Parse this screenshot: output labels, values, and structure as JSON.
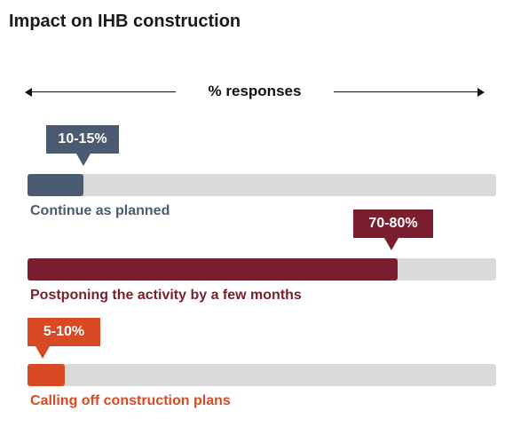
{
  "title": "Impact on IHB construction",
  "axis_label": "% responses",
  "colors": {
    "track": "#d9d9d9",
    "continue": "#4a5a70",
    "postpone": "#7b1f2e",
    "calloff": "#d84a23"
  },
  "chart_data": {
    "type": "bar",
    "orientation": "horizontal",
    "title": "Impact on IHB construction",
    "xlabel": "% responses",
    "xlim": [
      0,
      100
    ],
    "categories": [
      "Continue as planned",
      "Postponing the activity by a few months",
      "Calling off construction plans"
    ],
    "ranges": [
      [
        10,
        15
      ],
      [
        70,
        80
      ],
      [
        5,
        10
      ]
    ],
    "range_labels": [
      "10-15%",
      "70-80%",
      "5-10%"
    ],
    "values": [
      12,
      79,
      8
    ]
  }
}
